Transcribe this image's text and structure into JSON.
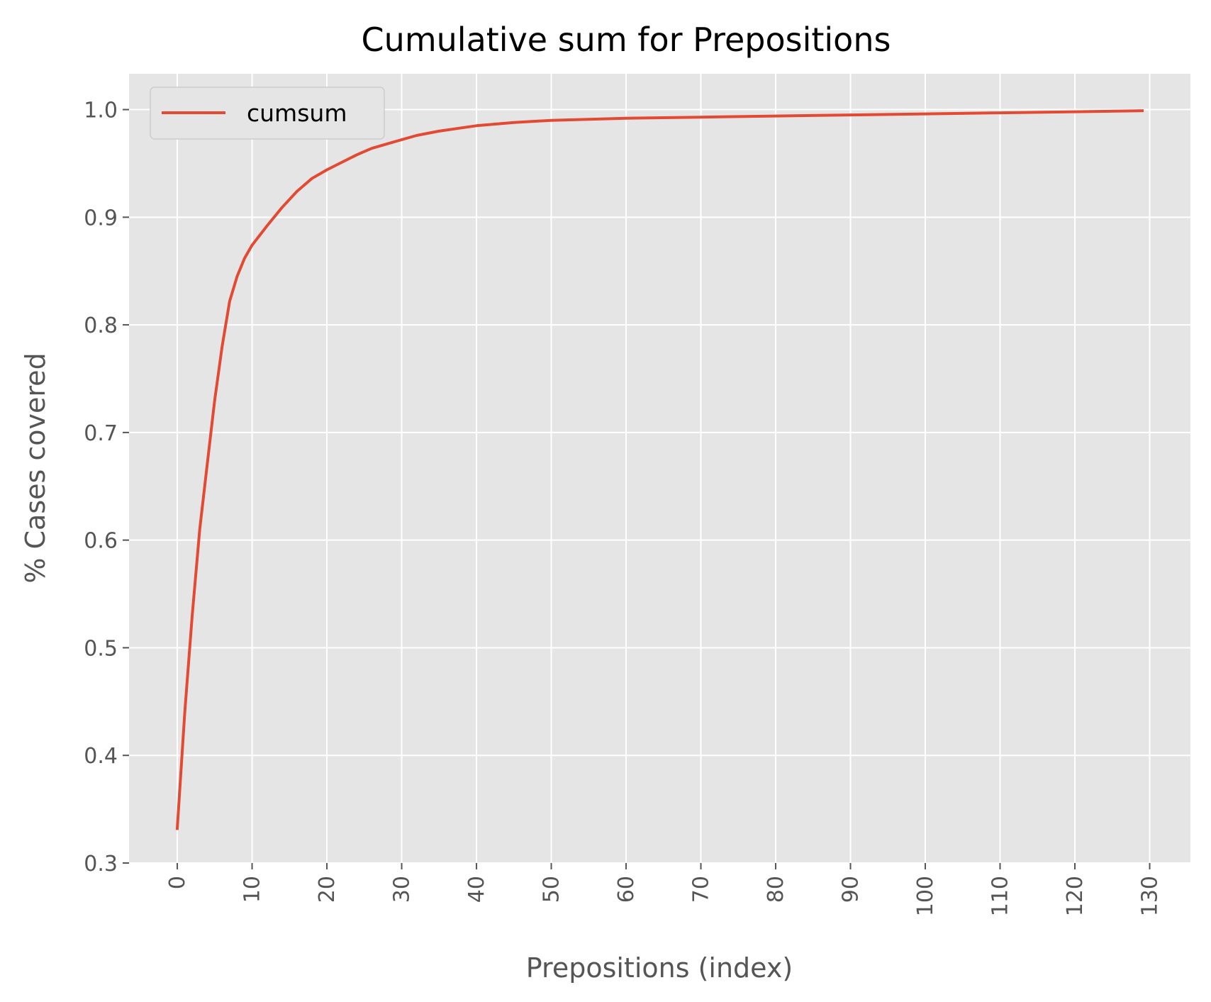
{
  "chart_data": {
    "type": "line",
    "title": "Cumulative sum for Prepositions",
    "xlabel": "Prepositions (index)",
    "ylabel": "% Cases covered",
    "xlim": [
      -6.45,
      135.45
    ],
    "ylim": [
      0.3,
      1.0333
    ],
    "xticks": [
      0,
      10,
      20,
      30,
      40,
      50,
      60,
      70,
      80,
      90,
      100,
      110,
      120,
      130
    ],
    "xtick_labels": [
      "0",
      "10",
      "20",
      "30",
      "40",
      "50",
      "60",
      "70",
      "80",
      "90",
      "100",
      "110",
      "120",
      "130"
    ],
    "yticks": [
      0.3,
      0.4,
      0.5,
      0.6,
      0.7,
      0.8,
      0.9,
      1.0
    ],
    "ytick_labels": [
      "0.3",
      "0.4",
      "0.5",
      "0.6",
      "0.7",
      "0.8",
      "0.9",
      "1.0"
    ],
    "grid": true,
    "legend_position": "top-left",
    "background_color": "#e5e5e5",
    "grid_color": "#ffffff",
    "series": [
      {
        "name": "cumsum",
        "color": "#e24a33",
        "x": [
          0,
          1,
          2,
          3,
          4,
          5,
          6,
          7,
          8,
          9,
          10,
          12,
          14,
          16,
          18,
          20,
          22,
          24,
          26,
          28,
          30,
          32,
          35,
          38,
          40,
          45,
          50,
          55,
          60,
          70,
          80,
          90,
          100,
          110,
          120,
          129
        ],
        "y": [
          0.332,
          0.44,
          0.53,
          0.61,
          0.67,
          0.73,
          0.78,
          0.822,
          0.845,
          0.862,
          0.874,
          0.892,
          0.909,
          0.924,
          0.936,
          0.944,
          0.951,
          0.958,
          0.964,
          0.968,
          0.972,
          0.976,
          0.98,
          0.983,
          0.985,
          0.988,
          0.99,
          0.991,
          0.992,
          0.993,
          0.994,
          0.995,
          0.996,
          0.997,
          0.998,
          0.999
        ]
      }
    ]
  }
}
